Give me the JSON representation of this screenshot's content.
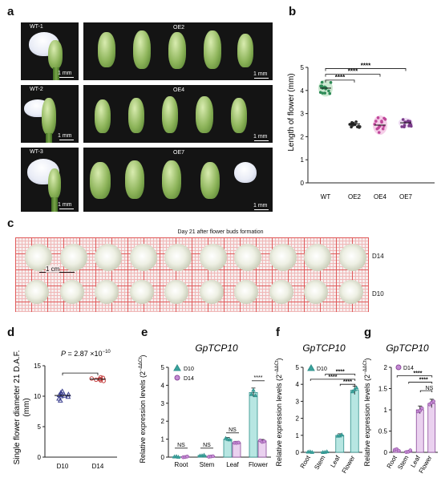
{
  "panel_a": {
    "label": "a",
    "wt_labels": [
      "WT-1",
      "WT-2",
      "WT-3"
    ],
    "oe_labels": [
      "OE2",
      "OE4",
      "OE7"
    ],
    "scale_bar": "1 mm"
  },
  "panel_b": {
    "label": "b",
    "ylabel": "Length of flower (mm)",
    "categories": [
      "WT",
      "OE2",
      "OE4",
      "OE7"
    ],
    "sig": "****"
  },
  "panel_c": {
    "label": "c",
    "title": "Day 21 after flower buds formation",
    "row_labels": [
      "D14",
      "D10"
    ],
    "scale": "1 cm"
  },
  "panel_d": {
    "label": "d",
    "ylabel_line1": "Single flower diameter 21 D.A.F.",
    "ylabel_line2": "(mm)",
    "categories": [
      "D10",
      "D14"
    ],
    "p_prefix": "P",
    "p_value": " = 2.87 ×10",
    "p_exp": "−10"
  },
  "panel_e": {
    "label": "e",
    "gene": "GpTCP10",
    "ylabel_main": "Relative expression levels (2",
    "ylabel_exp": "−ΔΔCt",
    "ylabel_end": ")",
    "legend": [
      "D10",
      "D14"
    ],
    "categories": [
      "Root",
      "Stem",
      "Leaf",
      "Flower"
    ],
    "sig": [
      "NS",
      "NS",
      "NS",
      "****"
    ]
  },
  "panel_f": {
    "label": "f",
    "gene": "GpTCP10",
    "ylabel_main": "Relative expression levels (2",
    "ylabel_exp": "−ΔΔCt",
    "ylabel_end": ")",
    "legend": [
      "D10"
    ],
    "categories": [
      "Root",
      "Stem",
      "Leaf",
      "Flower"
    ],
    "sig": "****"
  },
  "panel_g": {
    "label": "g",
    "gene": "GpTCP10",
    "ylabel_main": "Relative expression levels (2",
    "ylabel_exp": "−ΔΔCt",
    "ylabel_end": ")",
    "legend": [
      "D14"
    ],
    "categories": [
      "Root",
      "Stem",
      "Leaf",
      "Flower"
    ],
    "sig": [
      "****",
      "****",
      "NS"
    ]
  },
  "chart_data": [
    {
      "panel": "b",
      "type": "scatter",
      "ylabel": "Length of flower (mm)",
      "categories": [
        "WT",
        "OE2",
        "OE4",
        "OE7"
      ],
      "means": [
        4.1,
        2.55,
        2.5,
        2.6
      ],
      "ylim": [
        0,
        5
      ],
      "yticks": [
        0,
        1,
        2,
        3,
        4,
        5
      ],
      "colors": [
        "#2e8b57",
        "#2b2b2b",
        "#c0479a",
        "#7a3b8a"
      ]
    },
    {
      "panel": "d",
      "type": "scatter",
      "ylabel": "Single flower diameter 21 D.A.F. (mm)",
      "categories": [
        "D10",
        "D14"
      ],
      "values": [
        [
          9.3,
          9.6,
          9.9,
          10.0,
          10.1,
          10.2,
          10.3,
          10.4,
          10.6,
          10.8
        ],
        [
          12.5,
          12.6,
          12.7,
          12.8,
          12.8,
          12.9,
          13.0,
          13.1
        ]
      ],
      "ylim": [
        0,
        15
      ],
      "yticks": [
        0,
        5,
        10,
        15
      ],
      "colors": [
        "#3b3f8f",
        "#c23b3b"
      ]
    },
    {
      "panel": "e",
      "type": "bar",
      "categories": [
        "Root",
        "Stem",
        "Leaf",
        "Flower"
      ],
      "series": [
        {
          "name": "D10",
          "values": [
            0.02,
            0.1,
            1.0,
            3.6
          ]
        },
        {
          "name": "D14",
          "values": [
            0.02,
            0.03,
            0.8,
            0.9
          ]
        }
      ],
      "ylim": [
        0,
        5
      ],
      "yticks": [
        0,
        1,
        2,
        3,
        4,
        5
      ]
    },
    {
      "panel": "f",
      "type": "bar",
      "categories": [
        "Root",
        "Stem",
        "Leaf",
        "Flower"
      ],
      "series": [
        {
          "name": "D10",
          "values": [
            0.02,
            0.03,
            1.0,
            3.65
          ]
        }
      ],
      "ylim": [
        0,
        5
      ],
      "yticks": [
        0,
        1,
        2,
        3,
        4,
        5
      ]
    },
    {
      "panel": "g",
      "type": "bar",
      "categories": [
        "Root",
        "Stem",
        "Leaf",
        "Flower"
      ],
      "series": [
        {
          "name": "D14",
          "values": [
            0.05,
            0.03,
            1.0,
            1.15
          ]
        }
      ],
      "ylim": [
        0,
        2
      ],
      "yticks": [
        0,
        0.5,
        1,
        1.5,
        2
      ]
    }
  ]
}
